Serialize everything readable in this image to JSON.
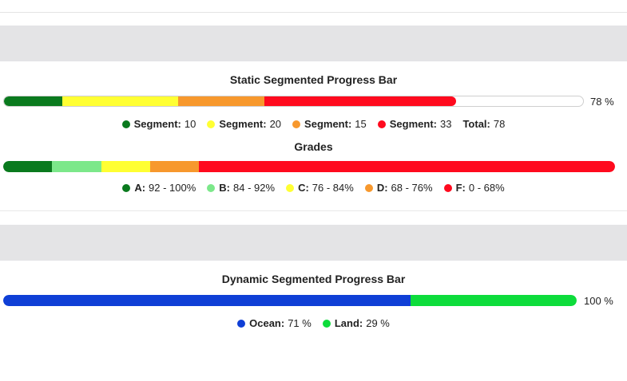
{
  "static_bar": {
    "title": "Static Segmented Progress Bar",
    "percent_label": "78 %",
    "segments": [
      {
        "label": "Segment:",
        "value": "10",
        "amount": 10,
        "color": "#0a7a1e"
      },
      {
        "label": "Segment:",
        "value": "20",
        "amount": 20,
        "color": "#ffff33"
      },
      {
        "label": "Segment:",
        "value": "15",
        "amount": 15,
        "color": "#f7982d"
      },
      {
        "label": "Segment:",
        "value": "33",
        "amount": 33,
        "color": "#ff0a1e"
      }
    ],
    "total_label": "Total:",
    "total_value": "78",
    "total": 78
  },
  "grades_bar": {
    "title": "Grades",
    "segments": [
      {
        "label": "A:",
        "value": "92 - 100%",
        "amount": 8,
        "color": "#0a7a1e"
      },
      {
        "label": "B:",
        "value": "84 - 92%",
        "amount": 8,
        "color": "#7ce88a"
      },
      {
        "label": "C:",
        "value": "76 - 84%",
        "amount": 8,
        "color": "#ffff33"
      },
      {
        "label": "D:",
        "value": "68 - 76%",
        "amount": 8,
        "color": "#f7982d"
      },
      {
        "label": "F:",
        "value": "0 - 68%",
        "amount": 68,
        "color": "#ff0a1e"
      }
    ]
  },
  "dynamic_bar": {
    "title": "Dynamic Segmented Progress Bar",
    "percent_label": "100 %",
    "segments": [
      {
        "label": "Ocean:",
        "value": "71 %",
        "amount": 71,
        "color": "#0f3fd6"
      },
      {
        "label": "Land:",
        "value": "29 %",
        "amount": 29,
        "color": "#0ddc3b"
      }
    ]
  }
}
